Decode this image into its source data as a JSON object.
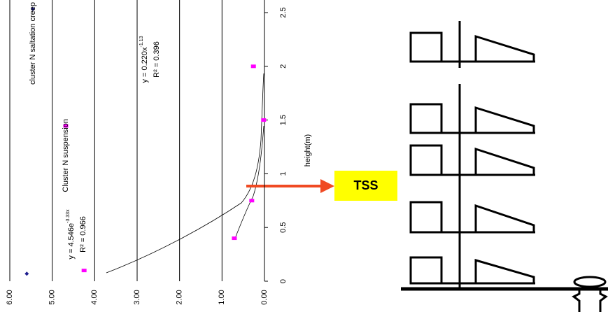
{
  "chart_data": {
    "type": "scatter",
    "orientation": "rotated",
    "x_label": "height(m)",
    "xlim": [
      0,
      2.5
    ],
    "xticks": [
      0,
      0.5,
      1,
      1.5,
      2,
      2.5
    ],
    "ylim": [
      0,
      6
    ],
    "yticks": [
      {
        "value": 0,
        "label": "0.00"
      },
      {
        "value": 1,
        "label": "1.00"
      },
      {
        "value": 2,
        "label": "2.00"
      },
      {
        "value": 3,
        "label": "3.00"
      },
      {
        "value": 4,
        "label": "4.00"
      },
      {
        "value": 5,
        "label": "5.00"
      },
      {
        "value": 6,
        "label": "6.00"
      }
    ],
    "grid": true,
    "series": [
      {
        "name": "cluster N saltation creep",
        "color": "#1f1f8f",
        "marker": "diamond",
        "x": [
          0.07
        ],
        "values": [
          5.6
        ]
      },
      {
        "name": "Cluster N suspension",
        "color": "#ff00ff",
        "marker": "square",
        "x": [
          0.1,
          0.4,
          0.75,
          1.5,
          2.0
        ],
        "values": [
          4.25,
          0.71,
          0.3,
          0.02,
          0.26
        ]
      }
    ],
    "annotations": [
      {
        "equation": "y = 4.546e",
        "exponent": "-3.33x",
        "r2": "R² = 0.966"
      },
      {
        "equation": "y = 0.220x",
        "exponent": "-1.13",
        "r2": "R² = 0.396"
      }
    ]
  },
  "diagram": {
    "label": "TSS"
  }
}
